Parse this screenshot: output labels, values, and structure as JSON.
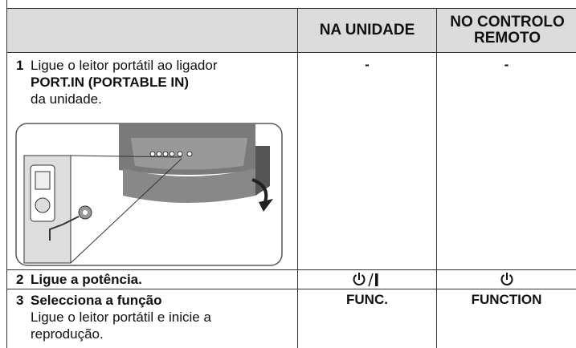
{
  "table": {
    "header_unit": "NA UNIDADE",
    "header_remote": [
      "NO CONTROLO",
      "REMOTO"
    ],
    "rows": [
      {
        "number": "1",
        "lines": [
          "Ligue o leitor portátil ao ligador",
          "PORT.IN (PORTABLE IN)",
          "da unidade."
        ],
        "unit": "-",
        "remote": "-"
      },
      {
        "number": "2",
        "title": "Ligue a potência."
      },
      {
        "number": "3",
        "title": "Selecciona a função",
        "lines": [
          "Ligue o leitor portátil e inicie a",
          "reprodução."
        ],
        "unit": "FUNC.",
        "remote": "FUNCTION"
      }
    ]
  }
}
